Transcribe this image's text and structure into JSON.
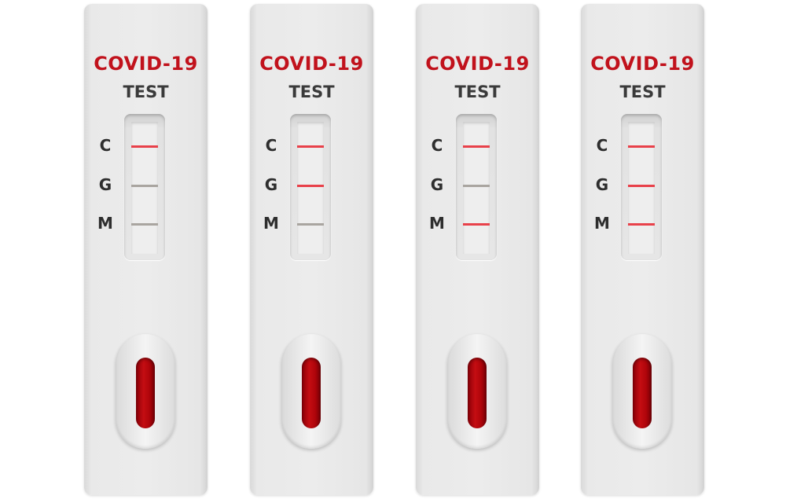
{
  "colors": {
    "title": "#c1121c",
    "positive_line": "#e8414a",
    "negative_line": "#a9a5a0",
    "sample": "#b0050b"
  },
  "cassettes": [
    {
      "title": "COVID-19",
      "subtitle": "TEST",
      "labels": [
        "C",
        "G",
        "M"
      ],
      "lines": [
        "positive",
        "negative",
        "negative"
      ]
    },
    {
      "title": "COVID-19",
      "subtitle": "TEST",
      "labels": [
        "C",
        "G",
        "M"
      ],
      "lines": [
        "positive",
        "positive",
        "negative"
      ]
    },
    {
      "title": "COVID-19",
      "subtitle": "TEST",
      "labels": [
        "C",
        "G",
        "M"
      ],
      "lines": [
        "positive",
        "negative",
        "positive"
      ]
    },
    {
      "title": "COVID-19",
      "subtitle": "TEST",
      "labels": [
        "C",
        "G",
        "M"
      ],
      "lines": [
        "positive",
        "positive",
        "positive"
      ]
    }
  ]
}
